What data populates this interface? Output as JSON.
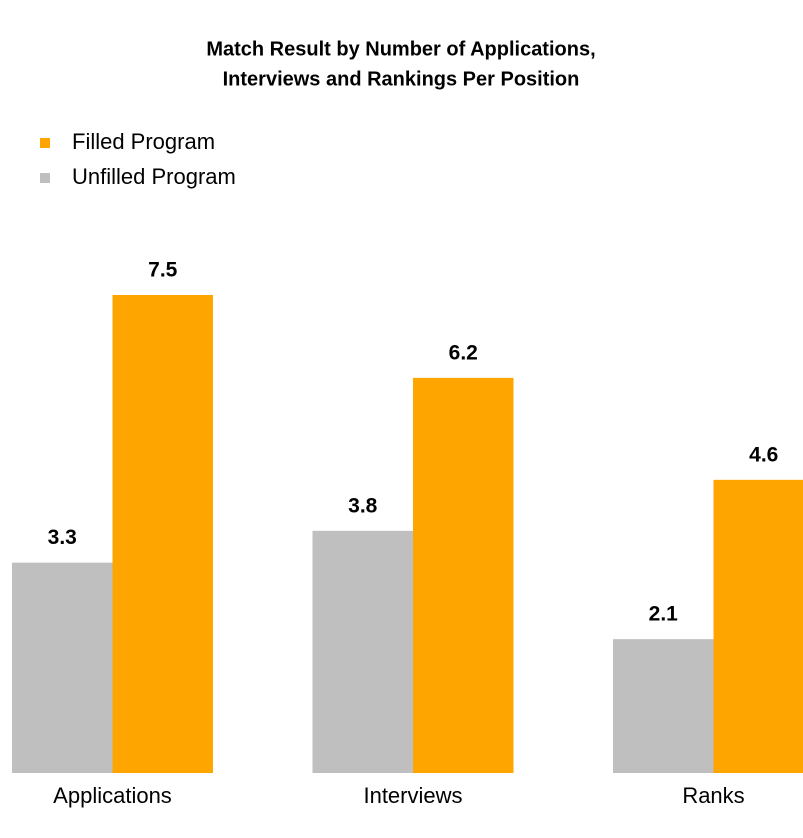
{
  "chart_data": {
    "type": "bar",
    "title": [
      "Match Result by Number of Applications,",
      "Interviews and Rankings Per Position"
    ],
    "categories": [
      "Applications",
      "Interviews",
      "Ranks"
    ],
    "series": [
      {
        "name": "Filled Program",
        "color": "#ffa500",
        "values": [
          7.5,
          6.2,
          4.6
        ]
      },
      {
        "name": "Unfilled Program",
        "color": "#bfbfbf",
        "values": [
          3.3,
          3.8,
          2.1
        ]
      }
    ]
  }
}
